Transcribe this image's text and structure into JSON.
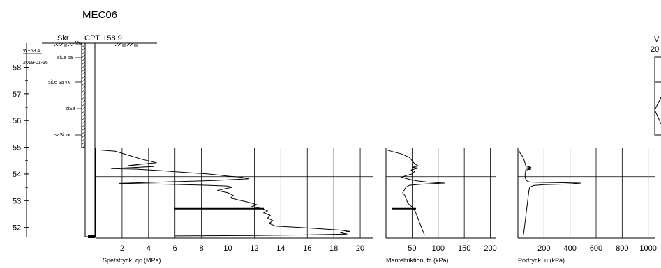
{
  "title": "MEC06",
  "header": {
    "skr": "Skr",
    "cpt": "CPT",
    "cpt_level": "+58.9",
    "gw_level": "W+58.4",
    "date": "2019-01-16"
  },
  "depth_axis": {
    "ticks": [
      "58",
      "57",
      "56",
      "55",
      "54",
      "53",
      "52"
    ]
  },
  "soil_layers": [
    "siLe sa",
    "siLe sa vx",
    "siSa",
    "saSi vx"
  ],
  "panels": {
    "qc": {
      "label": "Spetstryck, qc (MPa)",
      "ticks": [
        "2",
        "4",
        "6",
        "8",
        "10",
        "12",
        "14",
        "16",
        "18",
        "20"
      ]
    },
    "fc": {
      "label": "Mantelfriktion, fc (kPa)",
      "ticks": [
        "50",
        "100",
        "150",
        "200"
      ]
    },
    "u": {
      "label": "Portryck, u (kPa)",
      "ticks": [
        "200",
        "400",
        "600",
        "800",
        "1000"
      ]
    }
  },
  "right_header": {
    "line1": "V",
    "line2": "20"
  },
  "chart_data": {
    "type": "line",
    "ylabel": "",
    "ylim": [
      51.6,
      58.9
    ],
    "series": [
      {
        "name": "Spetstryck, qc (MPa)",
        "xlim": [
          0,
          21
        ],
        "points": [
          [
            0.2,
            54.9
          ],
          [
            1.5,
            54.85
          ],
          [
            2.5,
            54.7
          ],
          [
            3.5,
            54.55
          ],
          [
            4.6,
            54.42
          ],
          [
            2.5,
            54.32
          ],
          [
            4.4,
            54.28
          ],
          [
            1.2,
            54.2
          ],
          [
            3.0,
            54.18
          ],
          [
            5.0,
            54.12
          ],
          [
            7.0,
            54.05
          ],
          [
            8.5,
            54.0
          ],
          [
            9.5,
            53.95
          ],
          [
            10.0,
            53.92
          ],
          [
            11.0,
            53.88
          ],
          [
            11.6,
            53.82
          ],
          [
            9.0,
            53.76
          ],
          [
            5.0,
            53.7
          ],
          [
            1.8,
            53.65
          ],
          [
            5.0,
            53.62
          ],
          [
            8.5,
            53.58
          ],
          [
            10.0,
            53.55
          ],
          [
            10.3,
            53.5
          ],
          [
            9.8,
            53.45
          ],
          [
            9.2,
            53.38
          ],
          [
            10.0,
            53.3
          ],
          [
            10.4,
            53.2
          ],
          [
            10.2,
            53.1
          ],
          [
            11.0,
            53.0
          ],
          [
            11.5,
            52.95
          ],
          [
            12.2,
            52.85
          ],
          [
            11.8,
            52.78
          ],
          [
            12.6,
            52.7
          ],
          [
            13.0,
            52.62
          ],
          [
            12.7,
            52.55
          ],
          [
            13.2,
            52.45
          ],
          [
            13.0,
            52.35
          ],
          [
            13.4,
            52.25
          ],
          [
            13.1,
            52.15
          ],
          [
            13.6,
            52.05
          ],
          [
            15.5,
            52.0
          ],
          [
            17.0,
            51.95
          ],
          [
            18.5,
            51.9
          ],
          [
            19.2,
            51.85
          ],
          [
            18.5,
            51.8
          ],
          [
            19.0,
            51.75
          ],
          [
            16.0,
            51.72
          ],
          [
            12.0,
            51.7
          ],
          [
            6.0,
            51.68
          ]
        ]
      },
      {
        "name": "Mantelfriktion, fc (kPa)",
        "xlim": [
          0,
          210
        ],
        "points": [
          [
            2,
            54.9
          ],
          [
            10,
            54.85
          ],
          [
            30,
            54.75
          ],
          [
            45,
            54.62
          ],
          [
            50,
            54.5
          ],
          [
            55,
            54.38
          ],
          [
            62,
            54.3
          ],
          [
            50,
            54.25
          ],
          [
            62,
            54.22
          ],
          [
            48,
            54.15
          ],
          [
            55,
            54.1
          ],
          [
            50,
            54.0
          ],
          [
            40,
            53.95
          ],
          [
            30,
            53.88
          ],
          [
            45,
            53.8
          ],
          [
            60,
            53.74
          ],
          [
            80,
            53.7
          ],
          [
            112,
            53.66
          ],
          [
            70,
            53.62
          ],
          [
            45,
            53.58
          ],
          [
            38,
            53.5
          ],
          [
            35,
            53.4
          ],
          [
            32,
            53.3
          ],
          [
            36,
            53.2
          ],
          [
            38,
            53.1
          ],
          [
            40,
            53.0
          ],
          [
            42,
            52.9
          ],
          [
            48,
            52.8
          ],
          [
            52,
            52.7
          ],
          [
            56,
            52.6
          ],
          [
            58,
            52.5
          ],
          [
            60,
            52.4
          ],
          [
            62,
            52.3
          ],
          [
            64,
            52.2
          ],
          [
            66,
            52.1
          ],
          [
            68,
            52.0
          ],
          [
            70,
            51.9
          ],
          [
            72,
            51.8
          ],
          [
            74,
            51.7
          ]
        ]
      },
      {
        "name": "Portryck, u (kPa)",
        "xlim": [
          0,
          1050
        ],
        "points": [
          [
            5,
            54.9
          ],
          [
            15,
            54.8
          ],
          [
            30,
            54.7
          ],
          [
            45,
            54.55
          ],
          [
            55,
            54.4
          ],
          [
            60,
            54.3
          ],
          [
            100,
            54.25
          ],
          [
            60,
            54.22
          ],
          [
            100,
            54.18
          ],
          [
            60,
            54.15
          ],
          [
            55,
            54.0
          ],
          [
            55,
            53.9
          ],
          [
            60,
            53.8
          ],
          [
            70,
            53.74
          ],
          [
            90,
            53.7
          ],
          [
            480,
            53.66
          ],
          [
            420,
            53.63
          ],
          [
            200,
            53.6
          ],
          [
            120,
            53.57
          ],
          [
            90,
            53.5
          ],
          [
            85,
            53.4
          ],
          [
            80,
            53.2
          ],
          [
            75,
            53.0
          ],
          [
            70,
            52.8
          ],
          [
            65,
            52.6
          ],
          [
            60,
            52.4
          ],
          [
            55,
            52.2
          ],
          [
            50,
            52.0
          ],
          [
            45,
            51.8
          ],
          [
            40,
            51.7
          ]
        ]
      }
    ]
  }
}
